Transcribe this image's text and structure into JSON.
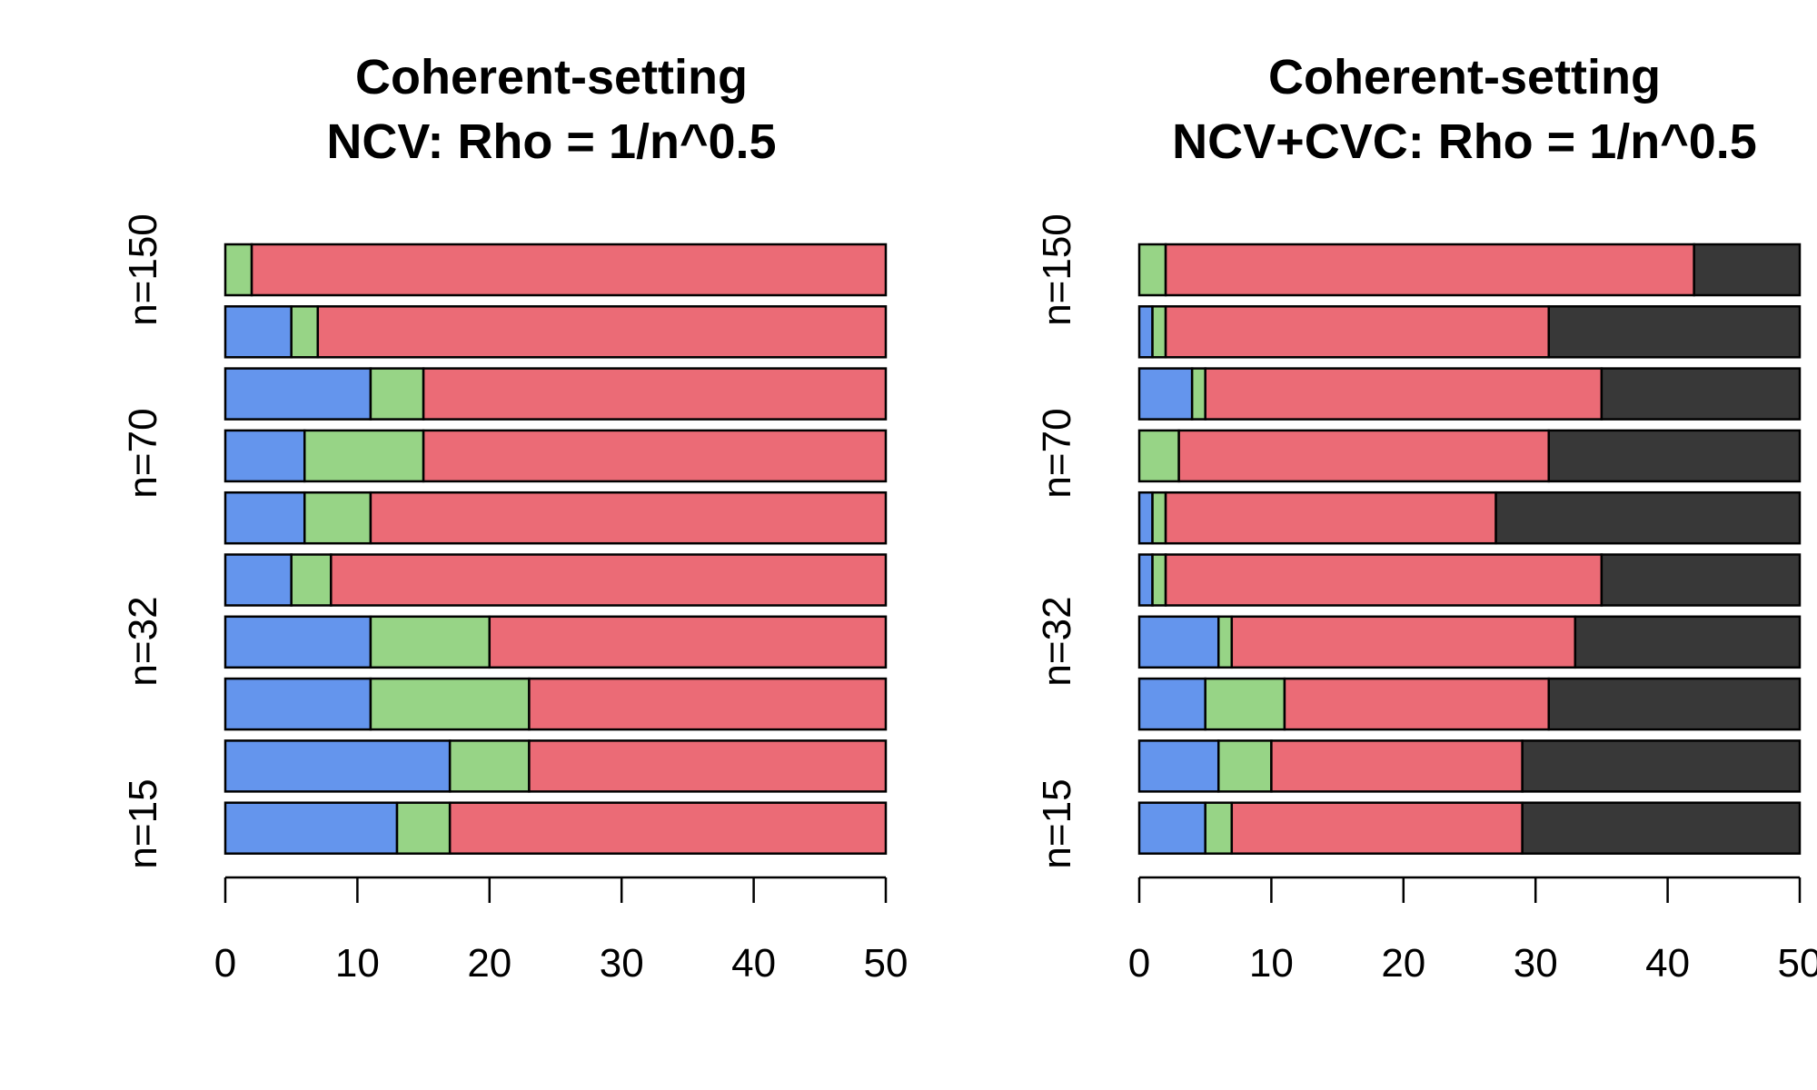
{
  "colors": {
    "blue": "#6495ED",
    "green": "#97D486",
    "red": "#EB6B76",
    "dark": "#383838",
    "stroke": "#000000"
  },
  "chart_data": [
    {
      "type": "bar",
      "orientation": "horizontal",
      "stacked": true,
      "title": [
        "Coherent-setting",
        "NCV: Rho = 1/n^0.5"
      ],
      "xlim": [
        0,
        50
      ],
      "xticks": [
        "0",
        "10",
        "20",
        "30",
        "40",
        "50"
      ],
      "group_labels": [
        "n=150",
        "n=70",
        "n=32",
        "n=15"
      ],
      "segment_colors": [
        "blue",
        "green",
        "red"
      ],
      "bars_top_to_bottom": [
        [
          0,
          2,
          48
        ],
        [
          5,
          2,
          43
        ],
        [
          11,
          4,
          35
        ],
        [
          6,
          9,
          35
        ],
        [
          6,
          5,
          39
        ],
        [
          5,
          3,
          42
        ],
        [
          11,
          9,
          30
        ],
        [
          11,
          12,
          27
        ],
        [
          17,
          6,
          27
        ],
        [
          13,
          4,
          33
        ]
      ]
    },
    {
      "type": "bar",
      "orientation": "horizontal",
      "stacked": true,
      "title": [
        "Coherent-setting",
        "NCV+CVC: Rho = 1/n^0.5"
      ],
      "xlim": [
        0,
        50
      ],
      "xticks": [
        "0",
        "10",
        "20",
        "30",
        "40",
        "50"
      ],
      "group_labels": [
        "n=150",
        "n=70",
        "n=32",
        "n=15"
      ],
      "segment_colors": [
        "blue",
        "green",
        "red",
        "dark"
      ],
      "bars_top_to_bottom": [
        [
          0,
          2,
          40,
          8
        ],
        [
          1,
          1,
          29,
          19
        ],
        [
          4,
          1,
          30,
          15
        ],
        [
          0,
          3,
          28,
          19
        ],
        [
          1,
          1,
          25,
          23
        ],
        [
          1,
          1,
          33,
          15
        ],
        [
          6,
          1,
          26,
          17
        ],
        [
          5,
          6,
          20,
          19
        ],
        [
          6,
          4,
          19,
          21
        ],
        [
          5,
          2,
          22,
          21
        ]
      ]
    }
  ]
}
